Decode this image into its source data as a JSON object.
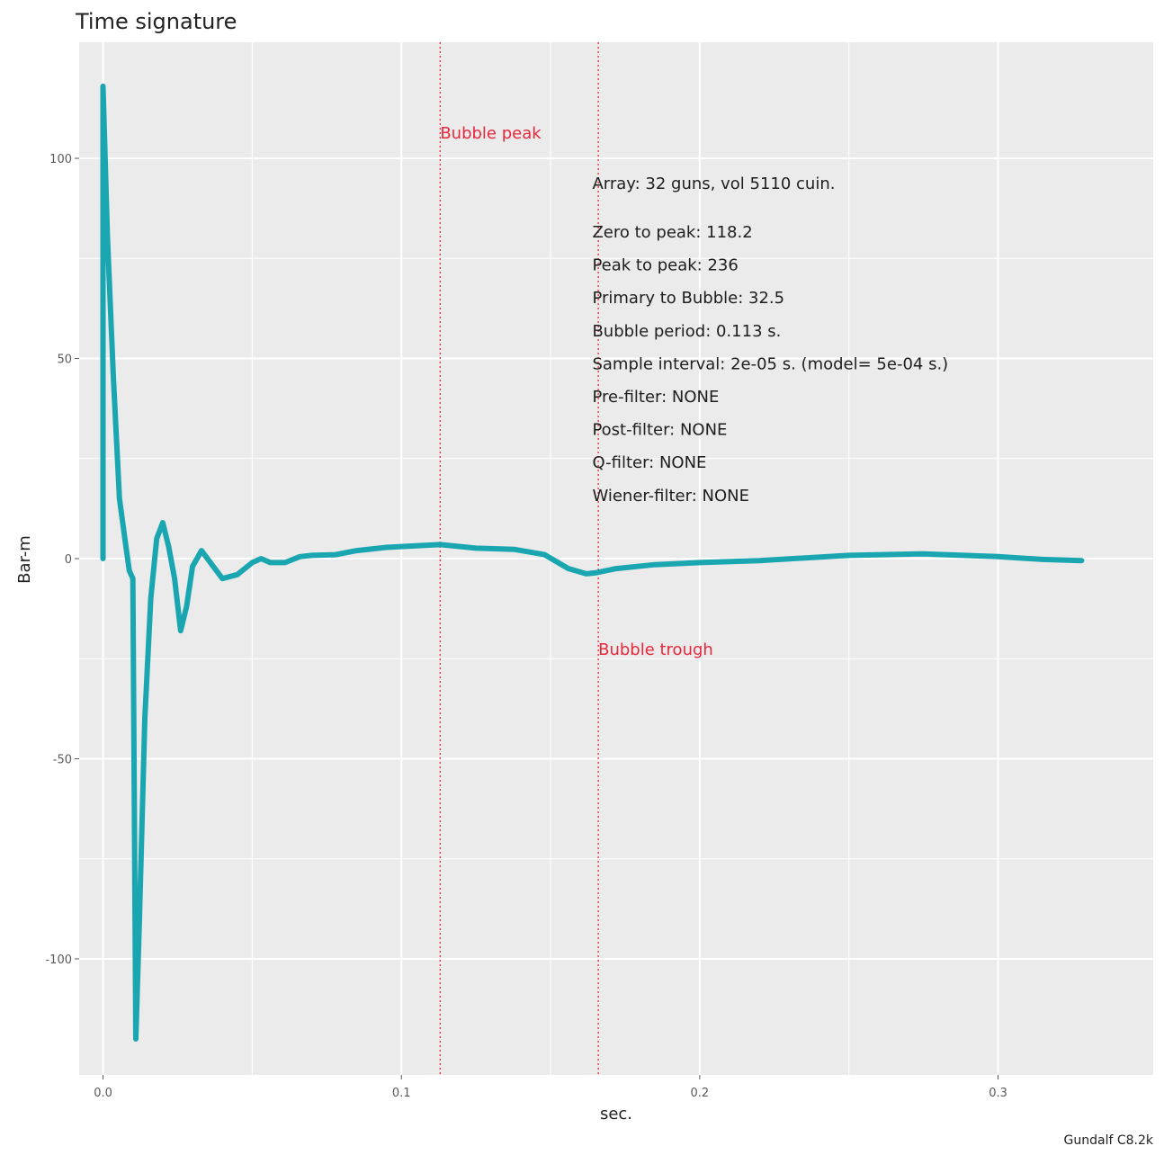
{
  "chart_data": {
    "type": "line",
    "title": "Time signature",
    "xlabel": "sec.",
    "ylabel": "Bar-m",
    "xlim": [
      -0.008,
      0.352
    ],
    "ylim": [
      -129,
      129
    ],
    "x_ticks": [
      {
        "value": 0.0,
        "label": "0.0"
      },
      {
        "value": 0.1,
        "label": "0.1"
      },
      {
        "value": 0.2,
        "label": "0.2"
      },
      {
        "value": 0.3,
        "label": "0.3"
      }
    ],
    "y_ticks": [
      {
        "value": 100,
        "label": "100"
      },
      {
        "value": 50,
        "label": "50"
      },
      {
        "value": 0,
        "label": "0"
      },
      {
        "value": -50,
        "label": "-50"
      },
      {
        "value": -100,
        "label": "-100"
      }
    ],
    "grid": true,
    "background": "#ebebeb",
    "grid_color": "#ffffff",
    "series": [
      {
        "color": "#1aa6b0",
        "x": [
          0.0,
          0.0,
          0.0015,
          0.0035,
          0.0055,
          0.0075,
          0.0088,
          0.01,
          0.011,
          0.0122,
          0.014,
          0.016,
          0.018,
          0.02,
          0.022,
          0.024,
          0.026,
          0.028,
          0.03,
          0.033,
          0.036,
          0.04,
          0.045,
          0.05,
          0.053,
          0.056,
          0.061,
          0.066,
          0.07,
          0.078,
          0.085,
          0.095,
          0.105,
          0.113,
          0.125,
          0.138,
          0.148,
          0.156,
          0.162,
          0.1655,
          0.172,
          0.185,
          0.2,
          0.22,
          0.25,
          0.275,
          0.3,
          0.315,
          0.328
        ],
        "y": [
          0,
          118,
          80,
          45,
          15,
          4,
          -3,
          -5,
          -120,
          -90,
          -40,
          -10,
          5,
          9,
          3,
          -5,
          -18,
          -12,
          -2,
          2,
          -1,
          -5,
          -4,
          -1,
          0,
          -1,
          -1,
          0.5,
          0.8,
          1,
          2,
          2.8,
          3.2,
          3.5,
          2.6,
          2.3,
          1,
          -2.5,
          -3.8,
          -3.5,
          -2.5,
          -1.5,
          -1,
          -0.5,
          0.8,
          1.2,
          0.5,
          -0.2,
          -0.5
        ]
      }
    ],
    "markers": [
      {
        "x": 0.113,
        "label": "Bubble peak",
        "color": "#e8283c"
      },
      {
        "x": 0.166,
        "label": "Bubble trough",
        "color": "#e8283c"
      }
    ],
    "annotations": [
      "Array:  32 guns, vol 5110 cuin.",
      "Zero to peak:  118.2",
      "Peak to peak:  236",
      "Primary to Bubble:  32.5",
      "Bubble period:  0.113 s.",
      "Sample interval:  2e-05 s.  (model= 5e-04 s.)",
      "Pre-filter:  NONE",
      "Post-filter:  NONE",
      "Q-filter:  NONE",
      "Wiener-filter:  NONE"
    ],
    "credit": "Gundalf C8.2k"
  }
}
